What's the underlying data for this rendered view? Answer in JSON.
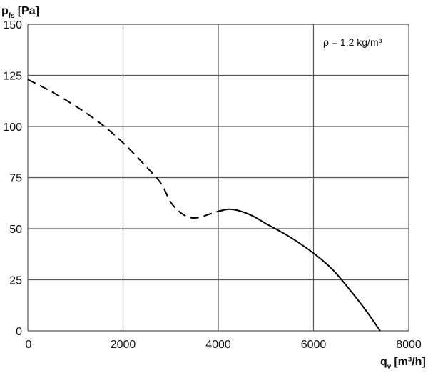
{
  "chart_data": {
    "type": "line",
    "ylabel": {
      "symbol": "p",
      "subscript": "fs",
      "unit": "[Pa]"
    },
    "xlabel": {
      "symbol": "q",
      "subscript": "v",
      "unit": "[m³/h]"
    },
    "annotation": "ρ = 1,2 kg/m³",
    "xlim": [
      0,
      8000
    ],
    "ylim": [
      0,
      150
    ],
    "x_ticks": [
      0,
      2000,
      4000,
      6000,
      8000
    ],
    "y_ticks": [
      0,
      25,
      50,
      75,
      100,
      125,
      150
    ],
    "grid": true,
    "series": [
      {
        "style": "dashed",
        "x": [
          0,
          500,
          1000,
          1500,
          2000,
          2500,
          2800,
          3000,
          3200,
          3400,
          3600,
          3800,
          4000,
          4100
        ],
        "y": [
          123,
          117,
          110,
          102,
          92,
          80,
          72,
          63,
          58,
          55.5,
          55.5,
          57,
          58.5,
          59
        ]
      },
      {
        "style": "solid",
        "x": [
          4000,
          4200,
          4400,
          4700,
          5000,
          5500,
          6000,
          6400,
          6800,
          7100,
          7400
        ],
        "y": [
          58.5,
          59.5,
          59,
          56.5,
          52.5,
          46,
          38,
          30,
          19,
          10,
          0
        ]
      }
    ]
  }
}
